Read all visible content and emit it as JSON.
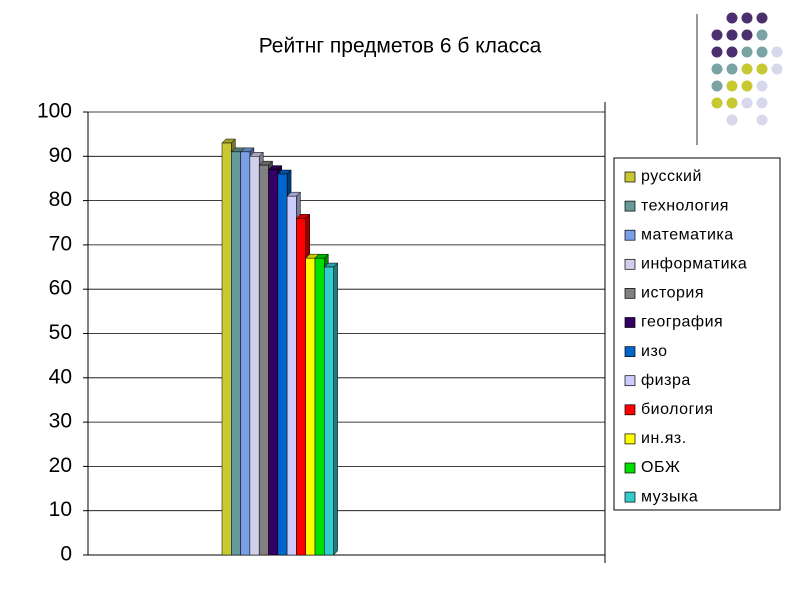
{
  "chart_data": {
    "type": "bar",
    "title": "Рейтнг предметов 6 б  класса",
    "categories": [
      null
    ],
    "series": [
      {
        "name": "русский",
        "color": "#c8c832",
        "values": [
          93
        ]
      },
      {
        "name": "технология",
        "color": "#669999",
        "values": [
          91
        ]
      },
      {
        "name": "математика",
        "color": "#7b9fe6",
        "values": [
          91
        ]
      },
      {
        "name": "информатика",
        "color": "#d0d0ea",
        "values": [
          90
        ]
      },
      {
        "name": "история",
        "color": "#808080",
        "values": [
          88
        ]
      },
      {
        "name": "география",
        "color": "#330066",
        "values": [
          87
        ]
      },
      {
        "name": "изо",
        "color": "#0066cc",
        "values": [
          86
        ]
      },
      {
        "name": "физра",
        "color": "#ccccff",
        "values": [
          81
        ]
      },
      {
        "name": "биология",
        "color": "#ff0000",
        "values": [
          76
        ]
      },
      {
        "name": "ин.яз.",
        "color": "#ffff00",
        "values": [
          67
        ]
      },
      {
        "name": "ОБЖ",
        "color": "#00e000",
        "values": [
          67
        ]
      },
      {
        "name": "музыка",
        "color": "#33cccc",
        "values": [
          65
        ]
      }
    ],
    "ylim": [
      0,
      100
    ],
    "yticks": [
      0,
      10,
      20,
      30,
      40,
      50,
      60,
      70,
      80,
      90,
      100
    ],
    "grid": true,
    "legend": "right"
  }
}
